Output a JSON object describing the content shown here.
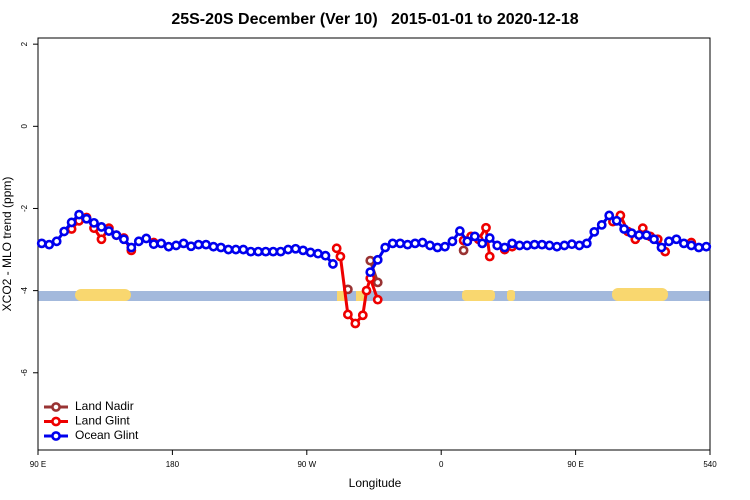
{
  "chart_data": {
    "type": "line",
    "title": "25S-20S December (Ver 10)   2015-01-01 to 2020-12-18",
    "xlabel": "Longitude",
    "ylabel": "XCO2 - MLO trend (ppm)",
    "xlim": [
      90,
      540
    ],
    "ylim": [
      -7.88,
      2.15
    ],
    "xticks": [
      {
        "value": 90,
        "label": "90 E"
      },
      180,
      {
        "value": 270,
        "label": "90 W"
      },
      {
        "value": 360,
        "label": "0"
      },
      {
        "value": 450,
        "label": "90 E"
      },
      540
    ],
    "yticks": [
      -6,
      -4,
      -2,
      0,
      2
    ],
    "legend": "bottom-left",
    "series": [
      {
        "name": "Land Nadir",
        "color": "#993333",
        "x": [
          297.5,
          305,
          312.5,
          317.5,
          345,
          375
        ],
        "values": [
          -3.97,
          null,
          -3.27,
          -3.8,
          null,
          -3.02
        ]
      },
      {
        "name": "Land Glint",
        "color": "#ee0000",
        "x": [
          112.5,
          117.5,
          122.5,
          127.5,
          132.5,
          137.5,
          142.5,
          147.5,
          152.5,
          157.5,
          167.5,
          172.5,
          290,
          292.5,
          297.5,
          302.5,
          307.5,
          310,
          312.5,
          317.5,
          370,
          375,
          380,
          385,
          390,
          392.5,
          397.5,
          402.5,
          407.5,
          440,
          475,
          480,
          485,
          490,
          495,
          500,
          505,
          510,
          517.5,
          527.5
        ],
        "values": [
          -2.5,
          -2.3,
          -2.22,
          -2.48,
          -2.75,
          -2.48,
          -2.65,
          -2.72,
          -3.02,
          null,
          -2.83,
          null,
          -2.97,
          -3.17,
          -4.58,
          -4.8,
          -4.6,
          -4.0,
          -3.7,
          -4.22,
          null,
          -2.78,
          -2.68,
          -2.75,
          -2.47,
          -3.17,
          null,
          -3.0,
          -2.93,
          null,
          -2.32,
          -2.17,
          -2.56,
          -2.75,
          -2.48,
          -2.68,
          -2.75,
          -3.05,
          null,
          -2.83
        ]
      },
      {
        "name": "Ocean Glint",
        "color": "#0000ee",
        "x": [
          92.5,
          97.5,
          102.5,
          107.5,
          112.5,
          117.5,
          122.5,
          127.5,
          132.5,
          137.5,
          142.5,
          147.5,
          152.5,
          157.5,
          162.5,
          167.5,
          172.5,
          177.5,
          182.5,
          187.5,
          192.5,
          197.5,
          202.5,
          207.5,
          212.5,
          217.5,
          222.5,
          227.5,
          232.5,
          237.5,
          242.5,
          247.5,
          252.5,
          257.5,
          262.5,
          267.5,
          272.5,
          277.5,
          282.5,
          287.5,
          292.5,
          297.5,
          302.5,
          307.5,
          312.5,
          317.5,
          322.5,
          327.5,
          332.5,
          337.5,
          342.5,
          347.5,
          352.5,
          357.5,
          362.5,
          367.5,
          372.5,
          377.5,
          382.5,
          387.5,
          392.5,
          397.5,
          402.5,
          407.5,
          412.5,
          417.5,
          422.5,
          427.5,
          432.5,
          437.5,
          442.5,
          447.5,
          452.5,
          457.5,
          462.5,
          467.5,
          472.5,
          477.5,
          482.5,
          487.5,
          492.5,
          497.5,
          502.5,
          507.5,
          512.5,
          517.5,
          522.5,
          527.5,
          532.5,
          537.5
        ],
        "values": [
          -2.85,
          -2.88,
          -2.8,
          -2.56,
          -2.34,
          -2.15,
          -2.25,
          -2.35,
          -2.45,
          -2.55,
          -2.65,
          -2.75,
          -2.95,
          -2.8,
          -2.73,
          -2.87,
          -2.85,
          -2.93,
          -2.9,
          -2.85,
          -2.92,
          -2.88,
          -2.88,
          -2.93,
          -2.95,
          -3.0,
          -3.0,
          -3.0,
          -3.05,
          -3.05,
          -3.05,
          -3.05,
          -3.05,
          -3.0,
          -2.98,
          -3.02,
          -3.07,
          -3.1,
          -3.15,
          -3.35,
          null,
          null,
          null,
          null,
          -3.55,
          -3.25,
          -2.95,
          -2.85,
          -2.85,
          -2.88,
          -2.85,
          -2.83,
          -2.9,
          -2.95,
          -2.93,
          -2.8,
          -2.55,
          -2.8,
          -2.68,
          -2.85,
          -2.72,
          -2.9,
          -2.95,
          -2.85,
          -2.9,
          -2.9,
          -2.88,
          -2.88,
          -2.9,
          -2.93,
          -2.9,
          -2.87,
          -2.9,
          -2.85,
          -2.57,
          -2.4,
          -2.17,
          -2.3,
          -2.5,
          -2.6,
          -2.65,
          -2.65,
          -2.75,
          -2.95,
          -2.8,
          -2.75,
          -2.85,
          -2.9,
          -2.95,
          -2.93
        ]
      }
    ]
  }
}
